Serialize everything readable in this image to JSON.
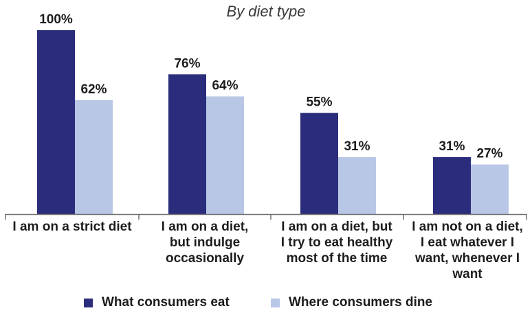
{
  "chart_data": {
    "type": "bar",
    "title": "",
    "subtitle": "By diet type",
    "categories": [
      "I am on a strict diet",
      "I am on a diet, but indulge occasionally",
      "I am on a diet, but I try to eat healthy most of the time",
      "I am not on a diet, I eat whatever I want, whenever I want"
    ],
    "category_lines": [
      [
        "I am on a strict diet"
      ],
      [
        "I am on a diet,",
        "but indulge",
        "occasionally"
      ],
      [
        "I am on a diet, but",
        "I try to eat healthy",
        "most of the time"
      ],
      [
        "I am not on a diet,",
        "I eat whatever I",
        "want, whenever I",
        "want"
      ]
    ],
    "series": [
      {
        "name": "What consumers eat",
        "values": [
          100,
          76,
          55,
          31
        ],
        "labels": [
          "100%",
          "76%",
          "55%",
          "31%"
        ],
        "color": "#2b2d7c"
      },
      {
        "name": "Where consumers dine",
        "values": [
          62,
          64,
          31,
          27
        ],
        "labels": [
          "62%",
          "64%",
          "31%",
          "27%"
        ],
        "color": "#b9c7e6"
      }
    ],
    "ylim": [
      0,
      100
    ],
    "grid": false,
    "legend_position": "bottom"
  }
}
